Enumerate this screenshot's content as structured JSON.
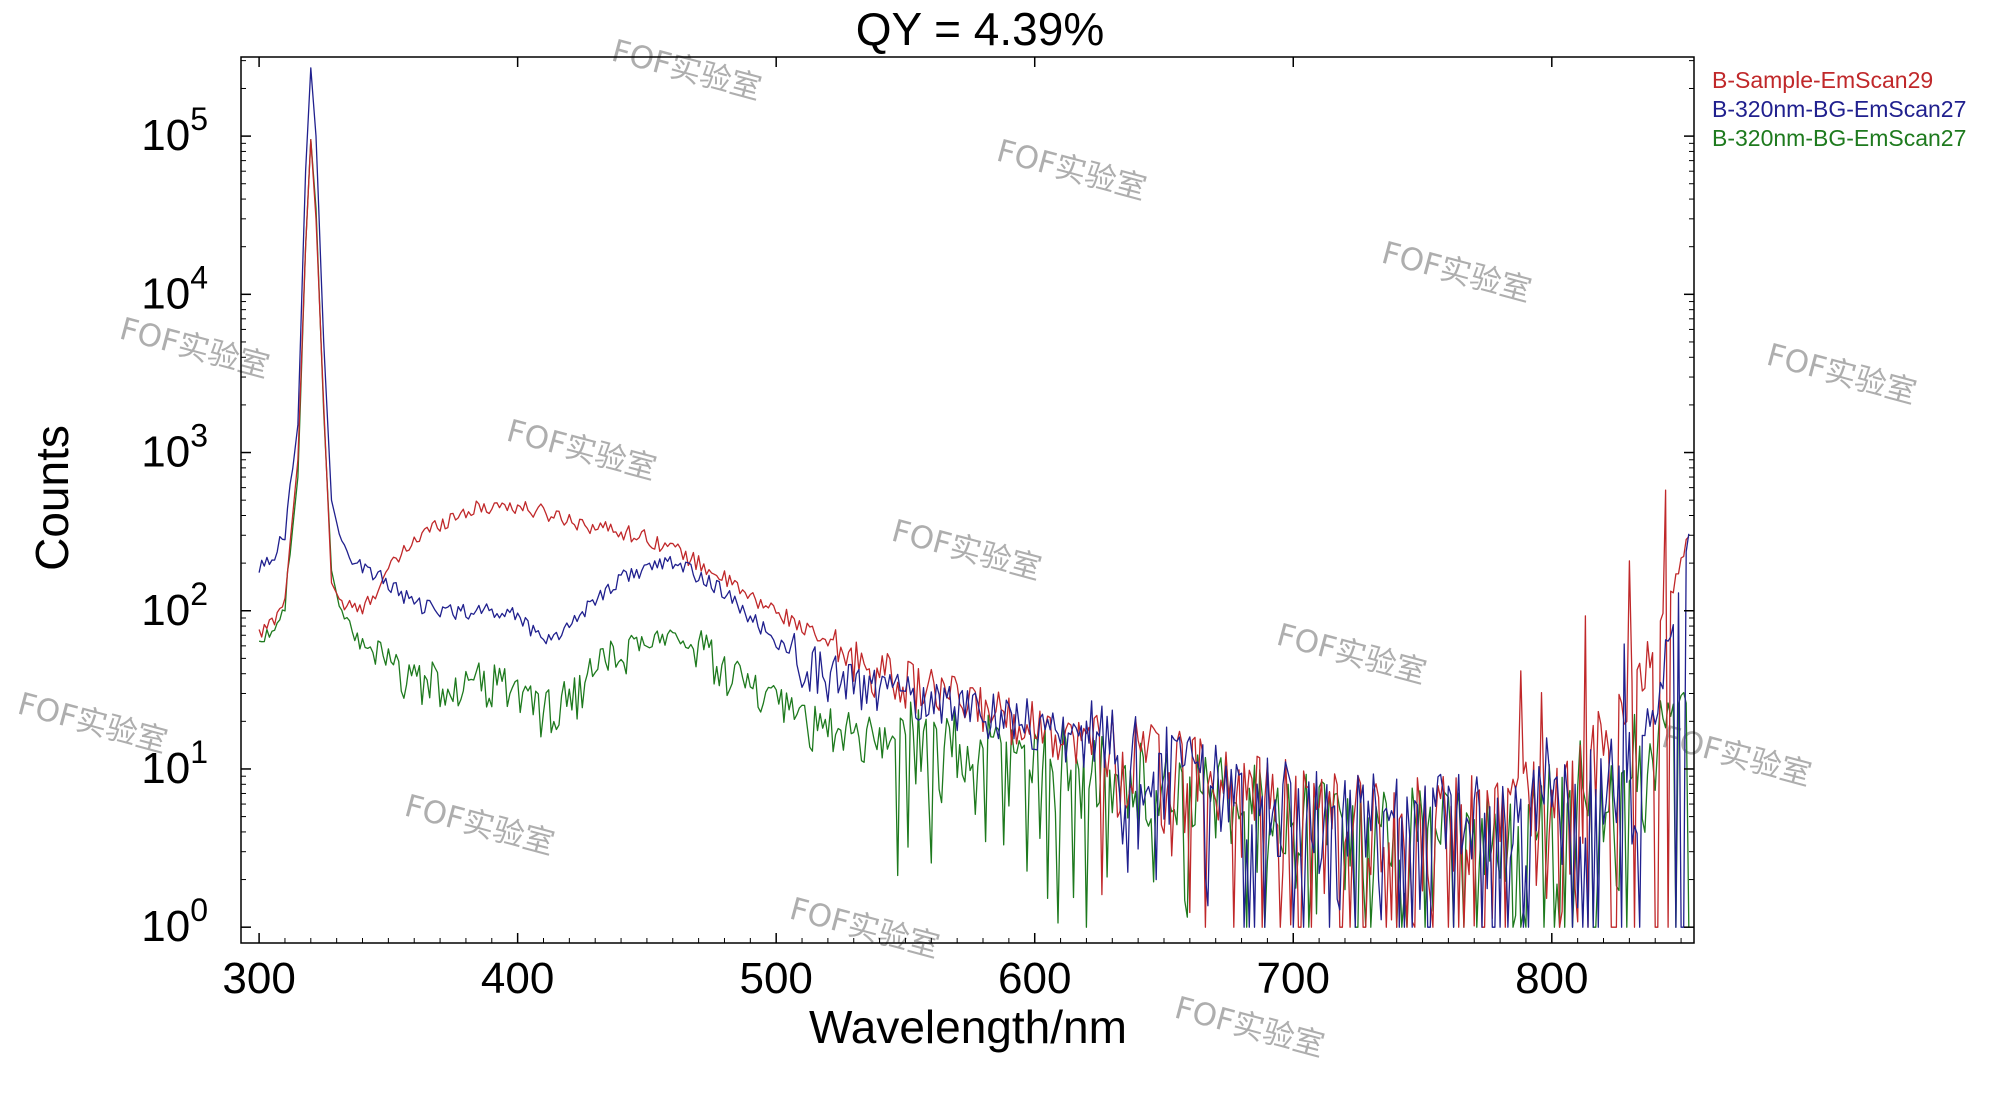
{
  "chart_data": {
    "type": "line",
    "title": "QY = 4.39%",
    "xlabel": "Wavelength/nm",
    "ylabel": "Counts",
    "xlim": [
      293,
      855
    ],
    "ylim_log10": [
      -0.1,
      5.5
    ],
    "y_scale": "log",
    "x_ticks": [
      300,
      400,
      500,
      600,
      700,
      800
    ],
    "x_tick_labels": [
      "300",
      "400",
      "500",
      "600",
      "700",
      "800"
    ],
    "y_ticks": [
      {
        "base": "10",
        "exp": "0",
        "value": 1
      },
      {
        "base": "10",
        "exp": "1",
        "value": 10
      },
      {
        "base": "10",
        "exp": "2",
        "value": 100
      },
      {
        "base": "10",
        "exp": "3",
        "value": 1000
      },
      {
        "base": "10",
        "exp": "4",
        "value": 10000
      },
      {
        "base": "10",
        "exp": "5",
        "value": 100000
      }
    ],
    "legend_position": "top-right outside",
    "grid": false,
    "series": [
      {
        "name": "B-Sample-EmScan29",
        "color": "#c0282a",
        "x": [
          300,
          305,
          310,
          315,
          318,
          320,
          322,
          325,
          328,
          332,
          340,
          350,
          360,
          370,
          380,
          390,
          395,
          400,
          410,
          420,
          430,
          440,
          450,
          460,
          470,
          480,
          490,
          500,
          510,
          520,
          530,
          540,
          550,
          560,
          570,
          580,
          590,
          600,
          610,
          620,
          630,
          640,
          650,
          660,
          670,
          680,
          690,
          700,
          710,
          720,
          730,
          740,
          750,
          760,
          770,
          780,
          790,
          800,
          810,
          820,
          830,
          840,
          845,
          850,
          853
        ],
        "y": [
          70,
          85,
          120,
          900,
          20000,
          95000,
          30000,
          2000,
          150,
          110,
          100,
          180,
          280,
          360,
          430,
          460,
          470,
          450,
          420,
          380,
          340,
          320,
          290,
          250,
          200,
          160,
          120,
          100,
          80,
          60,
          50,
          42,
          36,
          32,
          28,
          25,
          22,
          20,
          17,
          15,
          13,
          12,
          10,
          9,
          8,
          7,
          6.5,
          6,
          5.5,
          5,
          5,
          5,
          5,
          5,
          5,
          5,
          6,
          7,
          9,
          15,
          30,
          60,
          120,
          200,
          300
        ]
      },
      {
        "name": "B-320nm-BG-EmScan27",
        "color": "#20208e",
        "x": [
          300,
          305,
          310,
          315,
          318,
          320,
          322,
          325,
          328,
          332,
          340,
          350,
          360,
          370,
          380,
          390,
          400,
          410,
          420,
          430,
          440,
          450,
          460,
          470,
          480,
          490,
          500,
          510,
          520,
          530,
          540,
          550,
          560,
          570,
          580,
          590,
          600,
          610,
          620,
          630,
          640,
          650,
          660,
          670,
          680,
          690,
          700,
          710,
          720,
          730,
          740,
          750,
          760,
          770,
          780,
          790,
          800,
          810,
          820,
          830,
          840,
          845,
          850,
          853
        ],
        "y": [
          190,
          220,
          300,
          1500,
          60000,
          270000,
          100000,
          5000,
          500,
          260,
          190,
          150,
          110,
          100,
          100,
          100,
          95,
          65,
          80,
          120,
          160,
          190,
          200,
          170,
          130,
          90,
          65,
          50,
          40,
          35,
          32,
          30,
          28,
          26,
          24,
          22,
          20,
          17,
          15,
          13,
          12,
          10,
          9,
          8,
          7,
          6.5,
          6,
          5.5,
          5,
          5,
          5,
          5,
          5,
          5,
          5,
          5,
          6,
          7,
          8,
          12,
          25,
          60,
          150,
          300
        ]
      },
      {
        "name": "B-320nm-BG-EmScan27",
        "color": "#1e7a1e",
        "x": [
          300,
          305,
          310,
          315,
          318,
          320,
          322,
          325,
          328,
          332,
          340,
          350,
          360,
          370,
          380,
          390,
          400,
          410,
          420,
          430,
          440,
          450,
          460,
          470,
          480,
          490,
          500,
          510,
          520,
          530,
          540,
          550,
          560,
          570,
          580,
          590,
          600,
          610,
          620,
          630,
          640,
          650,
          660,
          670,
          680,
          690,
          700,
          710,
          720,
          730,
          740,
          750,
          760,
          770,
          780,
          790,
          800,
          810,
          820,
          830,
          840,
          845,
          850,
          853
        ],
        "y": [
          65,
          75,
          110,
          700,
          20000,
          95000,
          35000,
          1800,
          180,
          90,
          60,
          45,
          37,
          35,
          35,
          35,
          32,
          23,
          28,
          40,
          55,
          66,
          68,
          58,
          45,
          32,
          25,
          20,
          18,
          17,
          15.5,
          14.5,
          14,
          13,
          12,
          11.5,
          11,
          10,
          9,
          8.5,
          8,
          7.5,
          7,
          6.5,
          6,
          5.5,
          5,
          4.8,
          4.5,
          4.3,
          4,
          4,
          4,
          4,
          4,
          4,
          4.5,
          5,
          6,
          8,
          12,
          20,
          30,
          40
        ]
      }
    ]
  },
  "watermark": {
    "text": "FOF实验室",
    "color": "#9a9a9a"
  }
}
